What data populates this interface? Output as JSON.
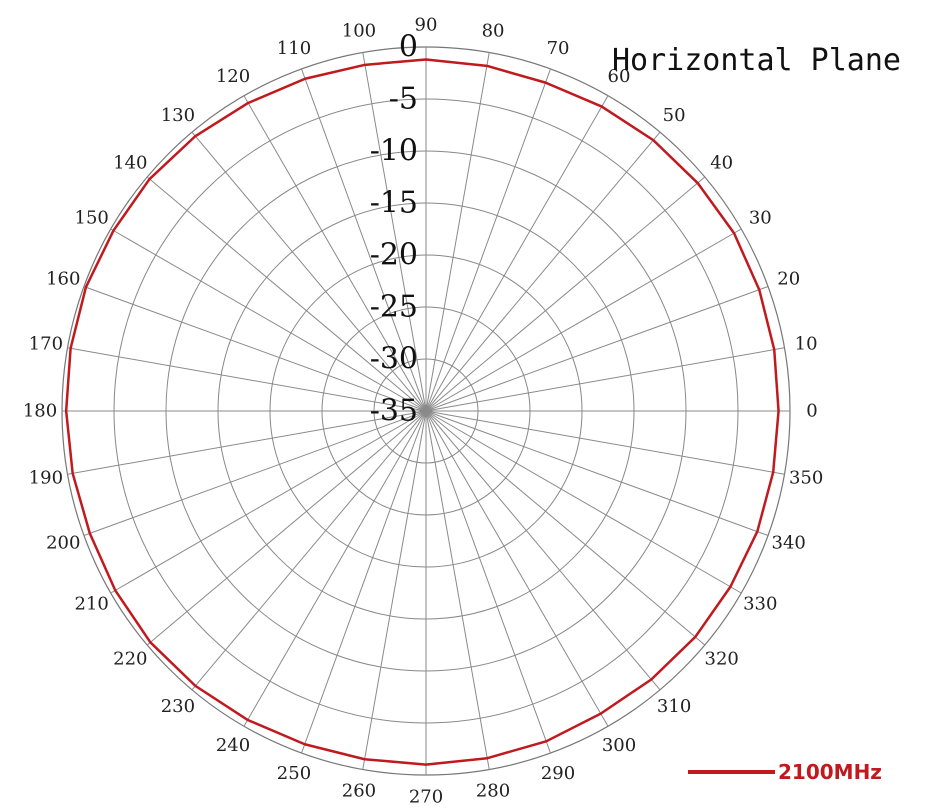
{
  "chart_data": {
    "type": "polar",
    "title": "Horizontal Plane",
    "angle_ticks": [
      0,
      10,
      20,
      30,
      40,
      50,
      60,
      70,
      80,
      90,
      100,
      110,
      120,
      130,
      140,
      150,
      160,
      170,
      180,
      190,
      200,
      210,
      220,
      230,
      240,
      250,
      260,
      270,
      280,
      290,
      300,
      310,
      320,
      330,
      340,
      350
    ],
    "radial_ticks": [
      "0",
      "-5",
      "-10",
      "-15",
      "-20",
      "-25",
      "-30",
      "-35"
    ],
    "rlim": [
      -35,
      0
    ],
    "grid": true,
    "legend_position": "bottom-right",
    "series": [
      {
        "name": "2100MHz",
        "color": "#c0191e",
        "angles": [
          0,
          10,
          20,
          30,
          40,
          50,
          60,
          70,
          80,
          90,
          100,
          110,
          120,
          130,
          140,
          150,
          160,
          170,
          180,
          190,
          200,
          210,
          220,
          230,
          240,
          250,
          260,
          270,
          280,
          290,
          300,
          310,
          320,
          330,
          340,
          350
        ],
        "values": [
          -1.1,
          -1.0,
          -0.9,
          -0.8,
          -0.9,
          -1.0,
          -1.2,
          -1.4,
          -1.3,
          -1.2,
          -1.2,
          -1.0,
          -0.8,
          -0.5,
          -0.3,
          -0.3,
          -0.2,
          -0.3,
          -0.4,
          -0.5,
          -0.6,
          -0.5,
          -0.4,
          -0.5,
          -0.7,
          -0.9,
          -1.0,
          -1.0,
          -1.1,
          -1.2,
          -1.4,
          -1.3,
          -1.2,
          -1.2,
          -1.1,
          -1.1
        ]
      }
    ]
  }
}
